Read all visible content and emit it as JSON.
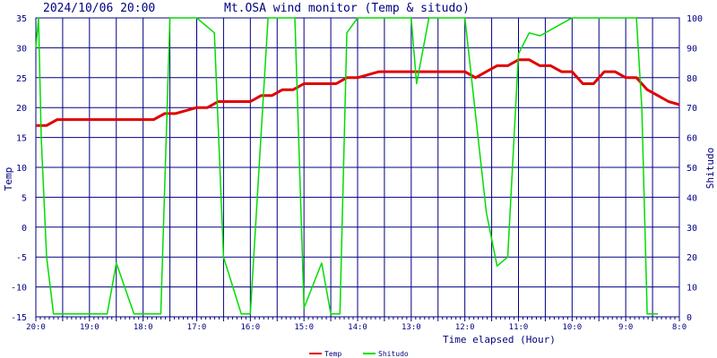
{
  "header": {
    "datetime": "2024/10/06 20:00",
    "title": "Mt.OSA wind monitor (Temp & situdo)"
  },
  "chart_data": {
    "type": "line",
    "title": "Mt.OSA wind monitor (Temp & situdo)",
    "xlabel": "Time elapsed (Hour)",
    "ylabel_left": "Temp",
    "ylabel_right": "Shitudo",
    "ylim_left": [
      -15,
      35
    ],
    "ylim_right": [
      0,
      100
    ],
    "yticks_left": [
      "-15",
      "-10",
      "-5",
      "0",
      "5",
      "10",
      "15",
      "20",
      "25",
      "30",
      "35"
    ],
    "yticks_right": [
      "0",
      "10",
      "20",
      "30",
      "40",
      "50",
      "60",
      "70",
      "80",
      "90",
      "100"
    ],
    "x_ticks": [
      "20:0",
      "19:0",
      "18:0",
      "17:0",
      "16:0",
      "15:0",
      "14:0",
      "13:0",
      "12:0",
      "11:0",
      "10:0",
      "9:0",
      "8:0"
    ],
    "x_unit": "hours elapsed (0 = 20:00, 12 = 8:00)",
    "xlim": [
      0,
      12
    ],
    "grid": true,
    "legend_position": "bottom-center",
    "series": [
      {
        "name": "Temp",
        "axis": "left",
        "color": "#e00000",
        "x": [
          0,
          0.2,
          0.4,
          0.6,
          1.0,
          1.5,
          2.0,
          2.2,
          2.4,
          2.6,
          3.0,
          3.2,
          3.4,
          3.6,
          4.0,
          4.2,
          4.4,
          4.6,
          4.8,
          5.0,
          5.2,
          5.4,
          5.6,
          5.8,
          6.0,
          6.4,
          6.8,
          7.2,
          7.6,
          8.0,
          8.2,
          8.4,
          8.6,
          8.8,
          9.0,
          9.2,
          9.4,
          9.6,
          9.8,
          10.0,
          10.2,
          10.4,
          10.6,
          10.8,
          11.0,
          11.2,
          11.4,
          11.6,
          11.8,
          12.0
        ],
        "values": [
          17,
          17,
          18,
          18,
          18,
          18,
          18,
          18,
          19,
          19,
          20,
          20,
          21,
          21,
          21,
          22,
          22,
          23,
          23,
          24,
          24,
          24,
          24,
          25,
          25,
          26,
          26,
          26,
          26,
          26,
          25,
          26,
          27,
          27,
          28,
          28,
          27,
          27,
          26,
          26,
          24,
          24,
          26,
          26,
          25,
          25,
          23,
          22,
          21,
          20.5
        ]
      },
      {
        "name": "Shitudo",
        "axis": "right",
        "color": "#00dd00",
        "x": [
          0,
          0.05,
          0.1,
          0.2,
          0.33,
          1.33,
          1.5,
          1.83,
          2.33,
          2.5,
          3.0,
          3.33,
          3.5,
          3.83,
          4.0,
          4.33,
          4.83,
          5.0,
          5.33,
          5.5,
          5.67,
          5.8,
          6.0,
          6.05,
          6.1,
          7.0,
          7.1,
          7.33,
          8.0,
          8.4,
          8.6,
          8.8,
          9.0,
          9.2,
          9.4,
          10.0,
          11.0,
          11.2,
          11.3,
          11.4,
          11.6
        ],
        "values": [
          90,
          100,
          60,
          20,
          1,
          1,
          18,
          1,
          1,
          100,
          100,
          95,
          20,
          1,
          1,
          100,
          100,
          3,
          18,
          1,
          1,
          95,
          100,
          100,
          100,
          100,
          78,
          100,
          100,
          35,
          17,
          20,
          88,
          95,
          94,
          100,
          100,
          100,
          70,
          1,
          1
        ]
      }
    ]
  }
}
